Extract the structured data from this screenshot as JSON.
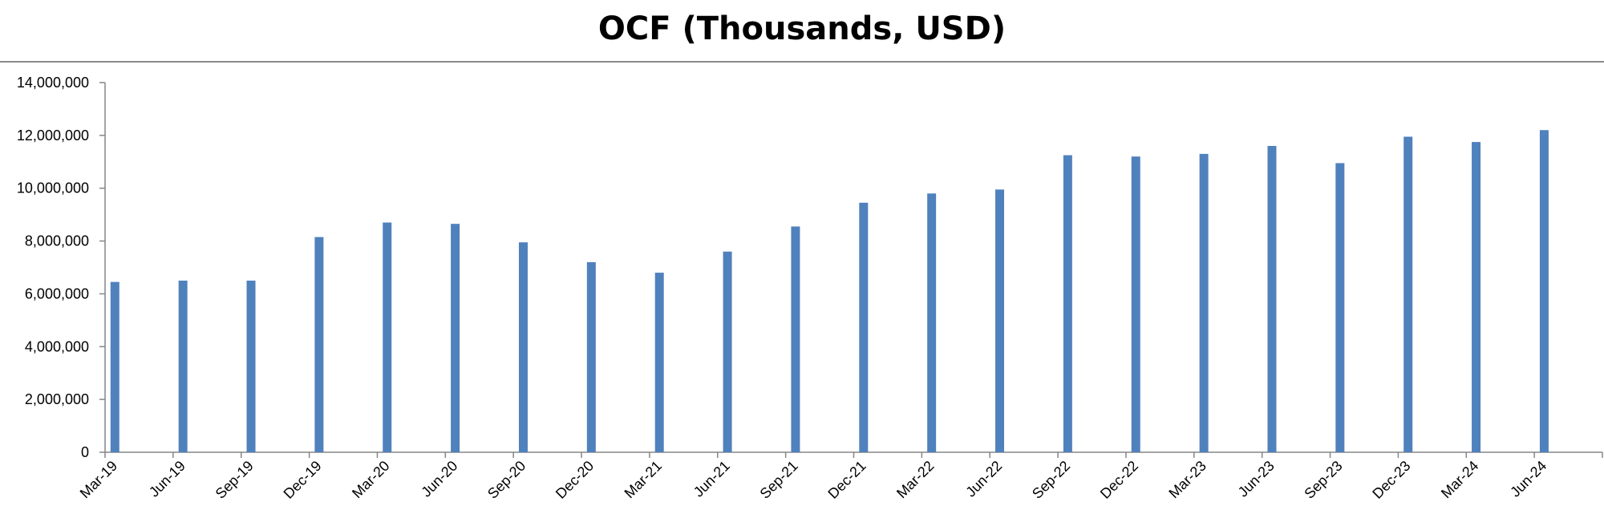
{
  "chart_data": {
    "type": "bar",
    "title": "OCF (Thousands, USD)",
    "xlabel": "",
    "ylabel": "",
    "ylim": [
      0,
      14000000
    ],
    "yticks": [
      0,
      2000000,
      4000000,
      6000000,
      8000000,
      10000000,
      12000000,
      14000000
    ],
    "ytick_labels": [
      "0",
      "2,000,000",
      "4,000,000",
      "6,000,000",
      "8,000,000",
      "10,000,000",
      "12,000,000",
      "14,000,000"
    ],
    "grid": false,
    "legend": "none",
    "bar_color": "#4F81BD",
    "categories": [
      "Mar-19",
      "Jun-19",
      "Sep-19",
      "Dec-19",
      "Mar-20",
      "Jun-20",
      "Sep-20",
      "Dec-20",
      "Mar-21",
      "Jun-21",
      "Sep-21",
      "Dec-21",
      "Mar-22",
      "Jun-22",
      "Sep-22",
      "Dec-22",
      "Mar-23",
      "Jun-23",
      "Sep-23",
      "Dec-23",
      "Mar-24",
      "Jun-24"
    ],
    "values": [
      6450000,
      6500000,
      6500000,
      8150000,
      8700000,
      8650000,
      7950000,
      7200000,
      6800000,
      7600000,
      8550000,
      9450000,
      9800000,
      9950000,
      11250000,
      11200000,
      11300000,
      11600000,
      10950000,
      11950000,
      11750000,
      12200000
    ]
  }
}
